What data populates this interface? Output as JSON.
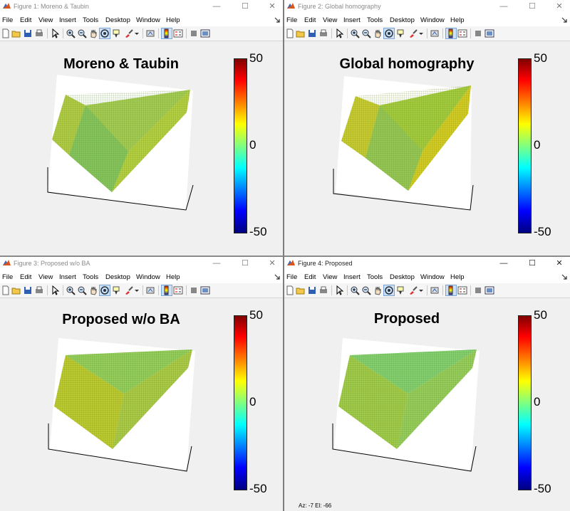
{
  "figures": [
    {
      "window_title": "Figure 1: Moreno & Taubin",
      "plot_title": "Moreno & Taubin",
      "active": false
    },
    {
      "window_title": "Figure 2: Global homography",
      "plot_title": "Global homography",
      "active": false
    },
    {
      "window_title": "Figure 3: Proposed w/o BA",
      "plot_title": "Proposed w/o BA",
      "active": false
    },
    {
      "window_title": "Figure 4: Proposed",
      "plot_title": "Proposed",
      "active": true
    }
  ],
  "menu": {
    "file": "File",
    "edit": "Edit",
    "view": "View",
    "insert": "Insert",
    "tools": "Tools",
    "desktop": "Desktop",
    "window": "Window",
    "help": "Help"
  },
  "colorbar": {
    "max_label": "50",
    "mid_label": "0",
    "min_label": "-50",
    "colormap": "jet",
    "range": [
      -50,
      50
    ]
  },
  "status": {
    "text": "Az:   -7 El:  -66"
  },
  "icons": [
    "matlab-figure-icon",
    "minimize-icon",
    "maximize-icon",
    "close-icon",
    "dock-arrow-icon",
    "new-figure-icon",
    "open-file-icon",
    "save-icon",
    "print-icon",
    "pointer-icon",
    "zoom-in-icon",
    "zoom-out-icon",
    "pan-icon",
    "rotate-3d-icon",
    "data-cursor-icon",
    "brush-icon",
    "link-plot-icon",
    "colorbar-icon",
    "legend-icon",
    "hide-plot-tools-icon",
    "show-plot-tools-icon"
  ],
  "colors": {
    "accent_select": "#cfe0f5",
    "window_bg": "#f0f0f0"
  }
}
